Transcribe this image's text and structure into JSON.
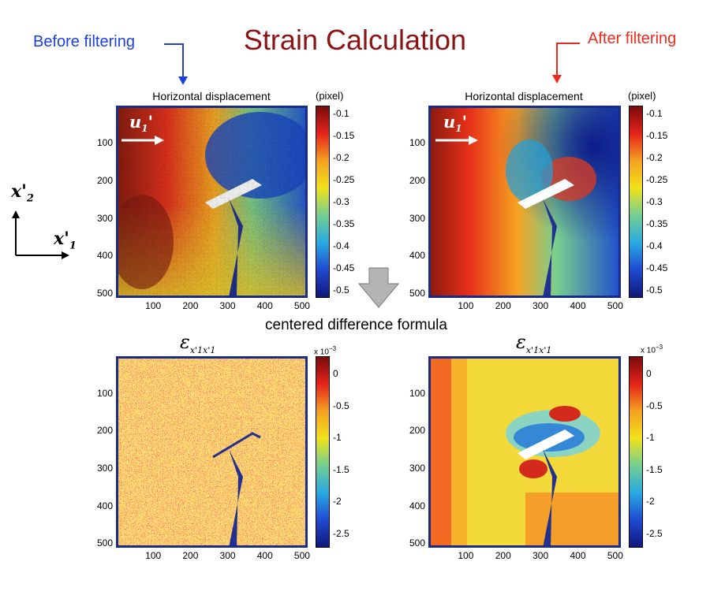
{
  "title": "Strain Calculation",
  "before_label": "Before filtering",
  "after_label": "After filtering",
  "arrow_label": "centered difference formula",
  "axes": {
    "x1": "x'",
    "x1_sub": "1",
    "x2": "x'",
    "x2_sub": "2"
  },
  "top_plot": {
    "title": "Horizontal displacement",
    "field_label": "u",
    "field_sub": "1",
    "field_prime": "'",
    "unit": "(pixel)",
    "cbar_ticks": [
      "-0.1",
      "-0.15",
      "-0.2",
      "-0.25",
      "-0.3",
      "-0.35",
      "-0.4",
      "-0.45",
      "-0.5"
    ]
  },
  "bottom_plot": {
    "title_symbol": "ε",
    "title_sub": "x'1x'1",
    "unit": "x 10",
    "unit_exp": "−3",
    "cbar_ticks": [
      "0",
      "-0.5",
      "-1",
      "-1.5",
      "-2",
      "-2.5"
    ]
  },
  "x_ticks": [
    "100",
    "200",
    "300",
    "400",
    "500"
  ],
  "y_ticks": [
    "100",
    "200",
    "300",
    "400",
    "500"
  ],
  "colors": {
    "title": "#8a1414",
    "before": "#1d3fe0",
    "after": "#ee2a1e",
    "frame": "#1b2c86"
  }
}
